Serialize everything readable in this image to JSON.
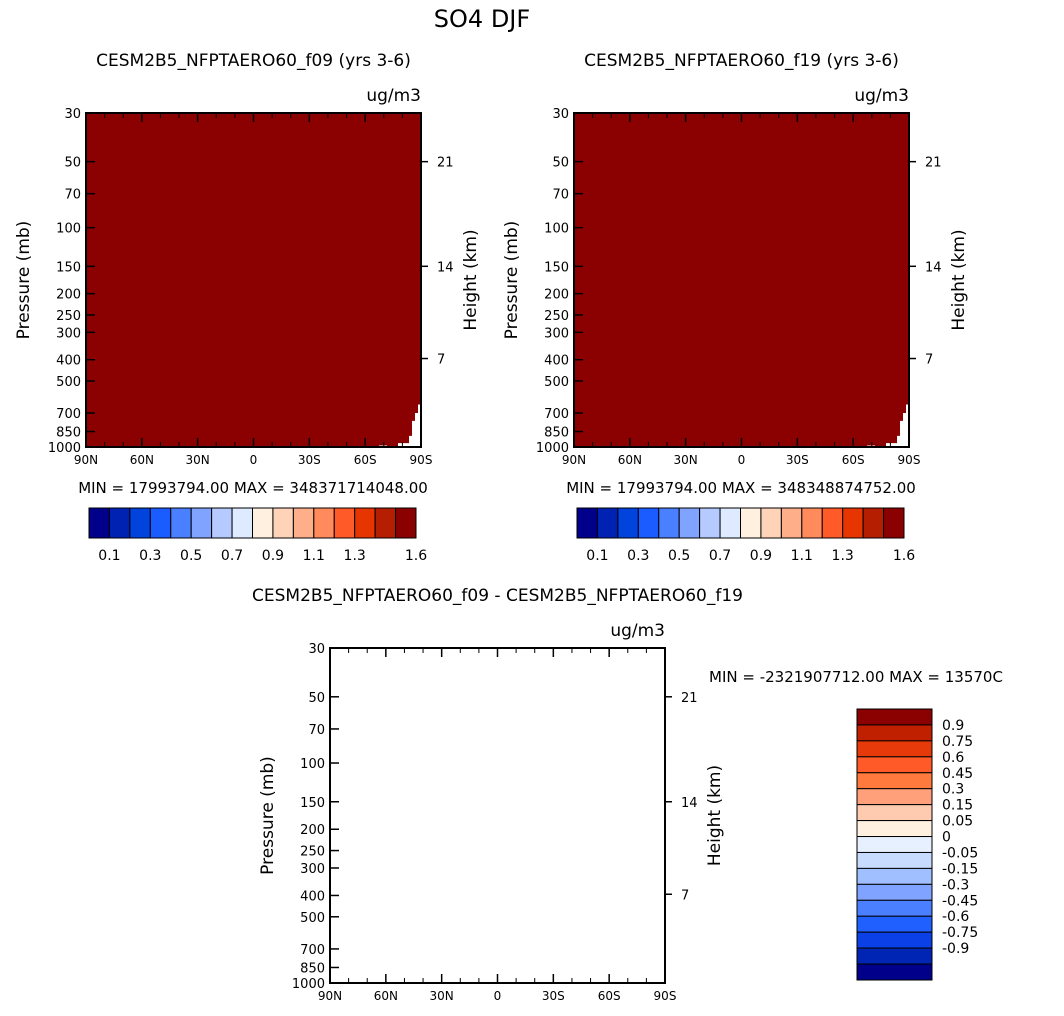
{
  "figure_title": "SO4 DJF",
  "colors": {
    "saturated_field": "#8b0000",
    "axis": "#000000",
    "background": "#ffffff"
  },
  "panels": {
    "left": {
      "title": "CESM2B5_NFPTAERO60_f09 (yrs 3-6)",
      "units": "ug/m3",
      "ylabel": "Pressure (mb)",
      "ylabel_right": "Height (km)",
      "stats": "MIN = 17993794.00   MAX = 348371714048.00"
    },
    "right": {
      "title": "CESM2B5_NFPTAERO60_f19 (yrs 3-6)",
      "units": "ug/m3",
      "ylabel": "Pressure (mb)",
      "ylabel_right": "Height (km)",
      "stats": "MIN = 17993794.00   MAX = 348348874752.00"
    },
    "bottom": {
      "title": "CESM2B5_NFPTAERO60_f09 - CESM2B5_NFPTAERO60_f19",
      "units": "ug/m3",
      "ylabel": "Pressure (mb)",
      "ylabel_right": "Height (km)",
      "stats": "MIN = -2321907712.00   MAX = 13570C"
    }
  },
  "chart_data": [
    {
      "type": "heatmap",
      "title": "CESM2B5_NFPTAERO60_f09 (yrs 3-6)",
      "units": "ug/m3",
      "xlabel": "",
      "ylabel": "Pressure (mb)",
      "ylabel_right": "Height (km)",
      "x_ticks": [
        "90N",
        "60N",
        "30N",
        "0",
        "30S",
        "60S",
        "90S"
      ],
      "y_ticks": [
        "30",
        "50",
        "70",
        "100",
        "150",
        "200",
        "250",
        "300",
        "400",
        "500",
        "700",
        "850",
        "1000"
      ],
      "y_ticks_right": [
        "21",
        "14",
        "7"
      ],
      "ylim": [
        1000,
        30
      ],
      "y_scale": "log",
      "fill": "whole domain above highest contour level (1.6+)",
      "min": 17993794.0,
      "max": 348371714048.0
    },
    {
      "type": "heatmap",
      "title": "CESM2B5_NFPTAERO60_f19 (yrs 3-6)",
      "units": "ug/m3",
      "xlabel": "",
      "ylabel": "Pressure (mb)",
      "ylabel_right": "Height (km)",
      "x_ticks": [
        "90N",
        "60N",
        "30N",
        "0",
        "30S",
        "60S",
        "90S"
      ],
      "y_ticks": [
        "30",
        "50",
        "70",
        "100",
        "150",
        "200",
        "250",
        "300",
        "400",
        "500",
        "700",
        "850",
        "1000"
      ],
      "y_ticks_right": [
        "21",
        "14",
        "7"
      ],
      "ylim": [
        1000,
        30
      ],
      "y_scale": "log",
      "fill": "whole domain above highest contour level (1.6+)",
      "min": 17993794.0,
      "max": 348348874752.0
    },
    {
      "type": "heatmap",
      "title": "CESM2B5_NFPTAERO60_f09 - CESM2B5_NFPTAERO60_f19",
      "units": "ug/m3",
      "xlabel": "",
      "ylabel": "Pressure (mb)",
      "ylabel_right": "Height (km)",
      "x_ticks": [
        "90N",
        "60N",
        "30N",
        "0",
        "30S",
        "60S",
        "90S"
      ],
      "y_ticks": [
        "30",
        "50",
        "70",
        "100",
        "150",
        "200",
        "250",
        "300",
        "400",
        "500",
        "700",
        "850",
        "1000"
      ],
      "y_ticks_right": [
        "21",
        "14",
        "7"
      ],
      "ylim": [
        1000,
        30
      ],
      "y_scale": "log",
      "fill": "empty (no contours drawn)",
      "min_label": "-2321907712.00",
      "max_label": "13570C"
    }
  ],
  "colorbars": {
    "absolute": {
      "colors": [
        "#00008b",
        "#0022b3",
        "#0044dd",
        "#1a5cff",
        "#4a80ff",
        "#7fa3ff",
        "#b5cbff",
        "#ddeaff",
        "#fff0e0",
        "#ffd3b8",
        "#ffae8a",
        "#ff8a5c",
        "#ff5a28",
        "#e63500",
        "#b51e00",
        "#8b0000"
      ],
      "labels": [
        "0.1",
        "0.3",
        "0.5",
        "0.7",
        "0.9",
        "1.1",
        "1.3",
        "1.6"
      ]
    },
    "difference": {
      "colors_top_to_bottom": [
        "#8b0000",
        "#c02000",
        "#e63a0a",
        "#ff5a28",
        "#ff7a3c",
        "#ffa07a",
        "#ffcbb0",
        "#fff0e0",
        "#e6f0ff",
        "#c7dbff",
        "#a0bfff",
        "#7fa3ff",
        "#4a80ff",
        "#2060ff",
        "#0a40e6",
        "#0024b3",
        "#00008b"
      ],
      "labels": [
        "0.9",
        "0.75",
        "0.6",
        "0.45",
        "0.3",
        "0.15",
        "0.05",
        "0",
        "-0.05",
        "-0.15",
        "-0.3",
        "-0.45",
        "-0.6",
        "-0.75",
        "-0.9"
      ]
    }
  }
}
